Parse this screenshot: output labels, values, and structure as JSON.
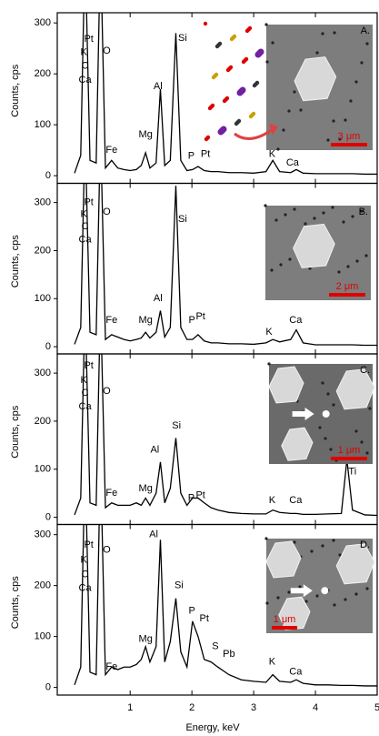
{
  "chart_data": [
    {
      "type": "line",
      "panel_label": "A.",
      "ylabel": "Counts, cps",
      "color": "#000000",
      "xlim": [
        -0.18,
        5.0
      ],
      "ylim": [
        -15,
        320
      ],
      "yticks": [
        0,
        100,
        200,
        300
      ],
      "x": [
        0.1,
        0.2,
        0.27,
        0.35,
        0.45,
        0.52,
        0.6,
        0.7,
        0.8,
        0.9,
        1.0,
        1.1,
        1.18,
        1.25,
        1.32,
        1.42,
        1.49,
        1.56,
        1.65,
        1.74,
        1.82,
        1.92,
        2.01,
        2.1,
        2.2,
        2.31,
        2.42,
        2.6,
        2.8,
        3.0,
        3.2,
        3.31,
        3.42,
        3.6,
        3.69,
        3.8,
        4.0,
        4.2,
        4.42,
        4.51,
        4.6,
        4.8,
        5.0
      ],
      "values": [
        5,
        40,
        450,
        30,
        25,
        450,
        15,
        30,
        15,
        12,
        10,
        12,
        20,
        45,
        15,
        25,
        170,
        20,
        30,
        280,
        30,
        10,
        12,
        18,
        10,
        8,
        8,
        6,
        6,
        5,
        8,
        30,
        8,
        6,
        12,
        5,
        4,
        4,
        4,
        4,
        4,
        3,
        3
      ],
      "annotations": [
        "Pt",
        "K",
        "C",
        "Ca",
        "O",
        "Fe",
        "Mg",
        "Al",
        "Si",
        "P",
        "Pt",
        "K",
        "Ca"
      ],
      "scale_bar": "3 μm"
    },
    {
      "type": "line",
      "panel_label": "B.",
      "ylabel": "Counts, cps",
      "color": "#000000",
      "xlim": [
        -0.18,
        5.0
      ],
      "ylim": [
        -15,
        340
      ],
      "yticks": [
        0,
        100,
        200,
        300
      ],
      "x": [
        0.1,
        0.2,
        0.27,
        0.35,
        0.45,
        0.52,
        0.6,
        0.7,
        0.8,
        0.9,
        1.0,
        1.1,
        1.18,
        1.25,
        1.32,
        1.42,
        1.49,
        1.56,
        1.65,
        1.74,
        1.82,
        1.92,
        2.01,
        2.1,
        2.2,
        2.31,
        2.42,
        2.6,
        2.8,
        3.0,
        3.2,
        3.31,
        3.42,
        3.6,
        3.69,
        3.8,
        4.0,
        4.2,
        4.42,
        4.51,
        4.6,
        4.8,
        5.0
      ],
      "values": [
        5,
        40,
        450,
        30,
        25,
        450,
        15,
        25,
        20,
        15,
        12,
        15,
        18,
        30,
        18,
        30,
        75,
        20,
        40,
        335,
        40,
        15,
        15,
        25,
        12,
        8,
        8,
        6,
        6,
        5,
        8,
        15,
        10,
        15,
        35,
        8,
        4,
        4,
        4,
        4,
        4,
        3,
        3
      ],
      "annotations": [
        "Pt",
        "K",
        "C",
        "Ca",
        "O",
        "Fe",
        "Mg",
        "Al",
        "Si",
        "P",
        "Pt",
        "K",
        "Ca"
      ],
      "scale_bar": "2 μm"
    },
    {
      "type": "line",
      "panel_label": "C.",
      "ylabel": "Counts, cps",
      "color": "#000000",
      "xlim": [
        -0.18,
        5.0
      ],
      "ylim": [
        -15,
        340
      ],
      "yticks": [
        0,
        100,
        200,
        300
      ],
      "x": [
        0.1,
        0.2,
        0.27,
        0.35,
        0.45,
        0.52,
        0.6,
        0.7,
        0.8,
        0.9,
        1.0,
        1.1,
        1.18,
        1.25,
        1.32,
        1.42,
        1.49,
        1.56,
        1.65,
        1.74,
        1.82,
        1.92,
        2.01,
        2.1,
        2.2,
        2.31,
        2.42,
        2.6,
        2.8,
        3.0,
        3.2,
        3.31,
        3.42,
        3.6,
        3.69,
        3.8,
        4.0,
        4.2,
        4.42,
        4.51,
        4.6,
        4.8,
        5.0
      ],
      "values": [
        5,
        40,
        450,
        30,
        25,
        450,
        20,
        30,
        25,
        25,
        25,
        30,
        25,
        40,
        25,
        50,
        115,
        30,
        60,
        165,
        50,
        25,
        40,
        40,
        30,
        20,
        15,
        10,
        8,
        7,
        7,
        15,
        10,
        8,
        8,
        6,
        6,
        7,
        8,
        120,
        15,
        5,
        4
      ],
      "annotations": [
        "Pt",
        "K",
        "C",
        "Ca",
        "O",
        "Fe",
        "Mg",
        "Al",
        "Si",
        "P",
        "Pt",
        "K",
        "Ca",
        "Ti"
      ],
      "scale_bar": "1 μm"
    },
    {
      "type": "line",
      "panel_label": "D.",
      "ylabel": "Counts, cps",
      "xlabel": "Energy, keV",
      "color": "#000000",
      "xlim": [
        -0.18,
        5.0
      ],
      "ylim": [
        -15,
        320
      ],
      "yticks": [
        0,
        100,
        200,
        300
      ],
      "xticks": [
        1,
        2,
        3,
        4,
        5
      ],
      "x": [
        0.1,
        0.2,
        0.27,
        0.35,
        0.45,
        0.52,
        0.6,
        0.7,
        0.8,
        0.9,
        1.0,
        1.1,
        1.18,
        1.25,
        1.32,
        1.42,
        1.49,
        1.56,
        1.65,
        1.74,
        1.82,
        1.92,
        2.01,
        2.1,
        2.2,
        2.31,
        2.42,
        2.6,
        2.8,
        3.0,
        3.2,
        3.31,
        3.42,
        3.6,
        3.69,
        3.8,
        4.0,
        4.2,
        4.42,
        4.51,
        4.6,
        4.8,
        5.0
      ],
      "values": [
        5,
        40,
        450,
        30,
        25,
        450,
        25,
        40,
        35,
        40,
        40,
        45,
        55,
        80,
        50,
        80,
        290,
        50,
        90,
        175,
        70,
        40,
        130,
        100,
        55,
        50,
        40,
        25,
        15,
        12,
        10,
        25,
        12,
        10,
        15,
        8,
        5,
        5,
        4,
        4,
        4,
        3,
        3
      ],
      "annotations": [
        "Pt",
        "K",
        "C",
        "Ca",
        "O",
        "Al",
        "Fe",
        "Mg",
        "Si",
        "P",
        "Pt",
        "S",
        "Pb",
        "K",
        "Ca"
      ],
      "scale_bar": "1 μm"
    }
  ]
}
